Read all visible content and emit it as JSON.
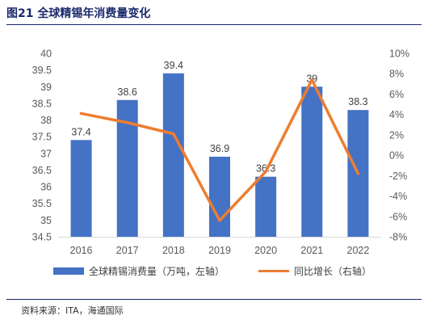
{
  "title": "图21 全球精锡年消费量变化",
  "source": "资料来源：ITA，海通国际",
  "colors": {
    "bar": "#4472c4",
    "line": "#ed7d31",
    "title": "#1b2a6b",
    "text": "#595959"
  },
  "chart_data": {
    "type": "bar+line",
    "categories": [
      "2016",
      "2017",
      "2018",
      "2019",
      "2020",
      "2021",
      "2022"
    ],
    "bar_series": {
      "name": "全球精锡消费量（万吨，左轴）",
      "values": [
        37.4,
        38.6,
        39.4,
        36.9,
        36.3,
        39,
        38.3
      ],
      "labels": [
        "37.4",
        "38.6",
        "39.4",
        "36.9",
        "36.3",
        "39",
        "38.3"
      ]
    },
    "line_series": {
      "name": "同比增长（右轴）",
      "values": [
        4.1,
        3.2,
        2.1,
        -6.4,
        -1.6,
        7.4,
        -1.8
      ]
    },
    "y_left": {
      "min": 34.5,
      "max": 40,
      "ticks": [
        "34.5",
        "35",
        "35.5",
        "36",
        "36.5",
        "37",
        "37.5",
        "38",
        "38.5",
        "39",
        "39.5",
        "40"
      ]
    },
    "y_right": {
      "min": -8,
      "max": 10,
      "ticks": [
        "-8%",
        "-6%",
        "-4%",
        "-2%",
        "0%",
        "2%",
        "4%",
        "6%",
        "8%",
        "10%"
      ]
    },
    "grid": false,
    "legend_position": "bottom"
  }
}
